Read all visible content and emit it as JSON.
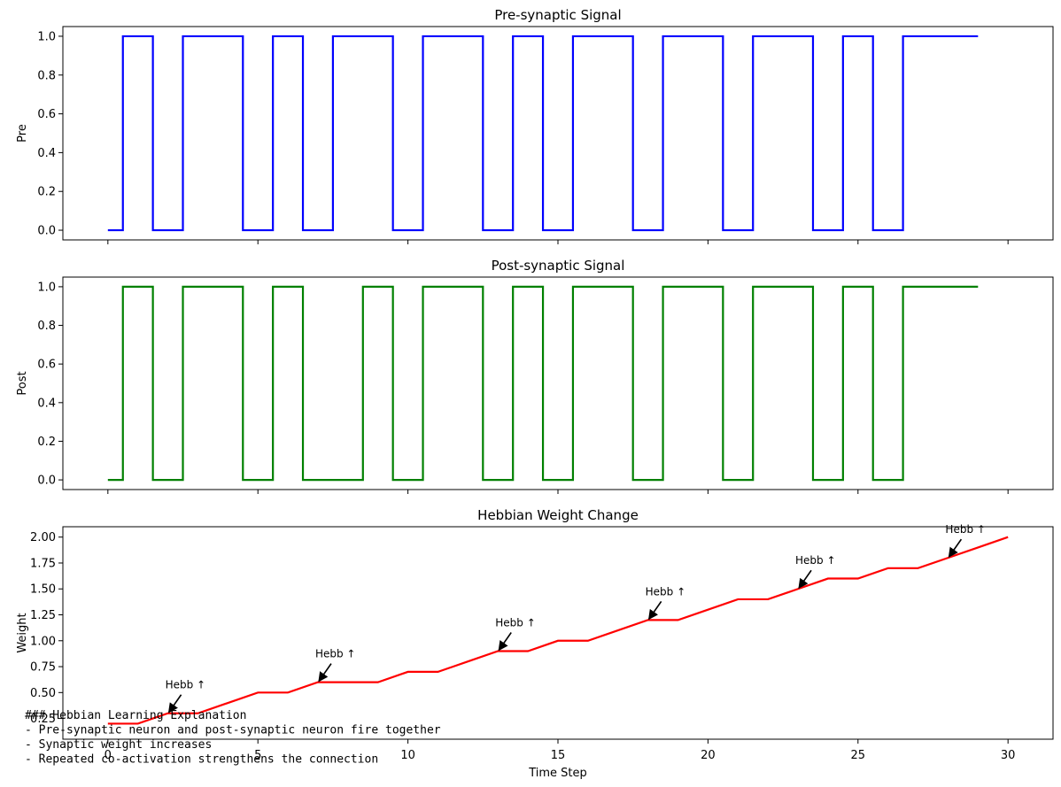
{
  "chart_data": [
    {
      "type": "line",
      "step": true,
      "title": "Pre-synaptic Signal",
      "xlabel": "",
      "ylabel": "Pre",
      "xlim": [
        -1.5,
        31.5
      ],
      "ylim": [
        -0.05,
        1.05
      ],
      "yticks": [
        "0.0",
        "0.2",
        "0.4",
        "0.6",
        "0.8",
        "1.0"
      ],
      "color": "#0000ff",
      "x": [
        0,
        1,
        2,
        3,
        4,
        5,
        6,
        7,
        8,
        9,
        10,
        11,
        12,
        13,
        14,
        15,
        16,
        17,
        18,
        19,
        20,
        21,
        22,
        23,
        24,
        25,
        26,
        27,
        28,
        29
      ],
      "values": [
        0,
        1,
        0,
        1,
        1,
        0,
        1,
        0,
        1,
        1,
        0,
        1,
        1,
        0,
        1,
        0,
        1,
        1,
        0,
        1,
        1,
        0,
        1,
        1,
        0,
        1,
        0,
        1,
        1,
        1
      ]
    },
    {
      "type": "line",
      "step": true,
      "title": "Post-synaptic Signal",
      "xlabel": "",
      "ylabel": "Post",
      "xlim": [
        -1.5,
        31.5
      ],
      "ylim": [
        -0.05,
        1.05
      ],
      "yticks": [
        "0.0",
        "0.2",
        "0.4",
        "0.6",
        "0.8",
        "1.0"
      ],
      "color": "#008000",
      "x": [
        0,
        1,
        2,
        3,
        4,
        5,
        6,
        7,
        8,
        9,
        10,
        11,
        12,
        13,
        14,
        15,
        16,
        17,
        18,
        19,
        20,
        21,
        22,
        23,
        24,
        25,
        26,
        27,
        28,
        29
      ],
      "values": [
        0,
        1,
        0,
        1,
        1,
        0,
        1,
        0,
        0,
        1,
        0,
        1,
        1,
        0,
        1,
        0,
        1,
        1,
        0,
        1,
        1,
        0,
        1,
        1,
        0,
        1,
        0,
        1,
        1,
        1
      ]
    },
    {
      "type": "line",
      "title": "Hebbian Weight Change",
      "xlabel": "Time Step",
      "ylabel": "Weight",
      "xlim": [
        -1.5,
        31.5
      ],
      "ylim": [
        0.05,
        2.1
      ],
      "xticks": [
        "0",
        "5",
        "10",
        "15",
        "20",
        "25",
        "30"
      ],
      "yticks": [
        "0.25",
        "0.50",
        "0.75",
        "1.00",
        "1.25",
        "1.50",
        "1.75",
        "2.00"
      ],
      "color": "#ff0000",
      "x": [
        0,
        1,
        2,
        3,
        4,
        5,
        6,
        7,
        8,
        9,
        10,
        11,
        12,
        13,
        14,
        15,
        16,
        17,
        18,
        19,
        20,
        21,
        22,
        23,
        24,
        25,
        26,
        27,
        28,
        29,
        30
      ],
      "values": [
        0.2,
        0.2,
        0.3,
        0.3,
        0.4,
        0.5,
        0.5,
        0.6,
        0.6,
        0.6,
        0.7,
        0.7,
        0.8,
        0.9,
        0.9,
        1.0,
        1.0,
        1.1,
        1.2,
        1.2,
        1.3,
        1.4,
        1.4,
        1.5,
        1.6,
        1.6,
        1.7,
        1.7,
        1.8,
        1.9,
        2.0
      ],
      "annotations": [
        {
          "text": "Hebb ↑",
          "x": 2,
          "y": 0.3
        },
        {
          "text": "Hebb ↑",
          "x": 7,
          "y": 0.6
        },
        {
          "text": "Hebb ↑",
          "x": 13,
          "y": 0.9
        },
        {
          "text": "Hebb ↑",
          "x": 18,
          "y": 1.2
        },
        {
          "text": "Hebb ↑",
          "x": 23,
          "y": 1.5
        },
        {
          "text": "Hebb ↑",
          "x": 28,
          "y": 1.8
        }
      ]
    }
  ],
  "explanation": [
    "### Hebbian Learning Explanation",
    "- Pre-synaptic neuron and post-synaptic neuron fire together",
    "- Synaptic weight increases",
    "- Repeated co-activation strengthens the connection"
  ]
}
